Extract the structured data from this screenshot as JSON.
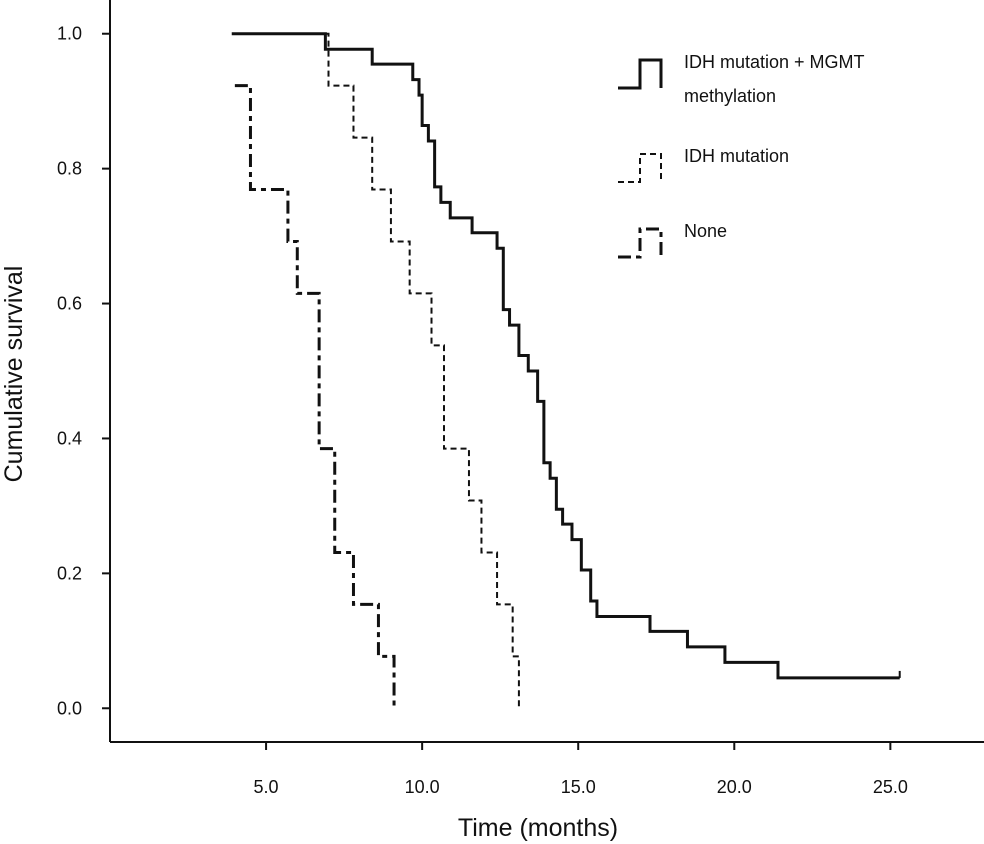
{
  "chart_data": {
    "type": "line",
    "step": true,
    "xlabel": "Time (months)",
    "ylabel": "Cumulative survival",
    "xlim": [
      0.0,
      28.0
    ],
    "ylim": [
      -0.05,
      1.05
    ],
    "xticks": [
      5.0,
      10.0,
      15.0,
      20.0,
      25.0
    ],
    "yticks": [
      0.0,
      0.2,
      0.4,
      0.6,
      0.8,
      1.0
    ],
    "xtick_labels": [
      "5.0",
      "10.0",
      "15.0",
      "20.0",
      "25.0"
    ],
    "ytick_labels": [
      "0.0",
      "0.2",
      "0.4",
      "0.6",
      "0.8",
      "1.0"
    ],
    "grid": false,
    "legend_position": "top-right",
    "series": [
      {
        "name": "IDH mutation + MGMT methylation",
        "line_style": "solid",
        "color": "#111111",
        "x": [
          3.9,
          6.9,
          8.4,
          9.7,
          9.9,
          10.0,
          10.2,
          10.4,
          10.6,
          10.9,
          11.6,
          12.4,
          12.6,
          12.8,
          13.1,
          13.4,
          13.7,
          13.9,
          14.1,
          14.3,
          14.5,
          14.8,
          15.1,
          15.4,
          15.6,
          17.3,
          18.5,
          19.7,
          21.4,
          25.3
        ],
        "y": [
          1.0,
          0.977,
          0.955,
          0.932,
          0.909,
          0.864,
          0.841,
          0.773,
          0.75,
          0.727,
          0.705,
          0.682,
          0.591,
          0.568,
          0.523,
          0.5,
          0.455,
          0.364,
          0.341,
          0.295,
          0.273,
          0.25,
          0.205,
          0.159,
          0.136,
          0.114,
          0.091,
          0.068,
          0.045,
          0.045
        ],
        "censored_x": [
          21.4,
          25.3
        ]
      },
      {
        "name": "IDH mutation",
        "line_style": "dashed",
        "color": "#111111",
        "x": [
          6.9,
          7.0,
          7.8,
          8.4,
          9.0,
          9.6,
          10.3,
          10.7,
          11.5,
          11.9,
          12.4,
          12.9,
          13.1
        ],
        "y": [
          1.0,
          0.923,
          0.846,
          0.769,
          0.692,
          0.615,
          0.538,
          0.385,
          0.308,
          0.231,
          0.154,
          0.077,
          0.0
        ]
      },
      {
        "name": "None",
        "line_style": "dashdot",
        "color": "#111111",
        "x": [
          4.0,
          4.5,
          5.7,
          6.0,
          6.7,
          7.2,
          7.8,
          8.6,
          9.1
        ],
        "y": [
          0.923,
          0.769,
          0.692,
          0.615,
          0.385,
          0.231,
          0.154,
          0.077,
          0.0
        ]
      }
    ]
  }
}
